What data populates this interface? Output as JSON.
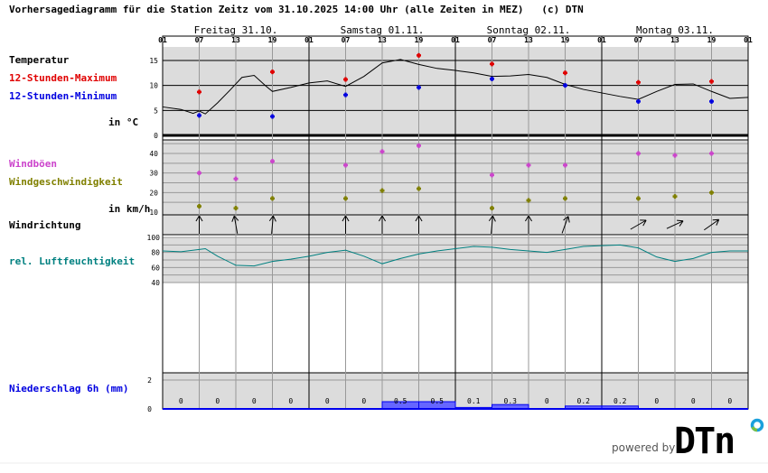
{
  "header": {
    "title": "Vorhersagediagramm für die Station Zeitz vom 31.10.2025 14:00 Uhr (alle Zeiten in MEZ)   (c) DTN"
  },
  "labels": {
    "temperature": "Temperatur",
    "max": "12-Stunden-Maximum",
    "min": "12-Stunden-Minimum",
    "temp_unit": "in °C",
    "gusts": "Windböen",
    "wind_speed": "Windgeschwindigkeit",
    "wind_unit": "in km/h",
    "wind_dir": "Windrichtung",
    "humidity": "rel. Luftfeuchtigkeit",
    "precip": "Niederschlag 6h (mm)"
  },
  "footer": {
    "powered_by": "powered by",
    "logo": "DTN"
  },
  "colors": {
    "max": "#e00000",
    "min": "#0000e0",
    "gust": "#cc44cc",
    "wind": "#808000",
    "humidity": "#008080",
    "precip_fill": "#6666ff",
    "precip_edge": "#0000ee",
    "panel": "#dcdcdc",
    "accent_logo": "#1aa0dc",
    "accent_logo2": "#7ac143"
  },
  "chart_data": {
    "type": "line",
    "days": [
      "Freitag 31.10.",
      "Samstag 01.11.",
      "Sonntag 02.11.",
      "Montag 03.11."
    ],
    "hour_ticks": [
      "01",
      "07",
      "13",
      "19",
      "01",
      "07",
      "13",
      "19",
      "01",
      "07",
      "13",
      "19",
      "01",
      "07",
      "13",
      "19",
      "01"
    ],
    "temperature": {
      "ylim": [
        0,
        17.7
      ],
      "ticks": [
        0,
        5,
        10,
        15
      ],
      "hours_3h_from_fri_01": [
        0,
        3,
        5,
        6,
        7,
        9,
        11,
        13,
        15,
        17,
        18,
        21,
        24,
        27,
        30,
        33,
        36,
        39,
        42,
        45,
        48,
        51,
        54,
        57,
        60,
        63,
        66,
        69,
        72,
        75,
        78,
        81,
        84,
        87,
        90,
        93,
        96
      ],
      "values": [
        5.7,
        5.2,
        4.4,
        4.9,
        4.3,
        6.5,
        9,
        11.6,
        12,
        9.8,
        8.8,
        9.6,
        10.5,
        10.9,
        9.8,
        11.8,
        14.5,
        15.2,
        14.2,
        13.4,
        13,
        12.5,
        11.8,
        11.9,
        12.2,
        11.6,
        10.2,
        9.2,
        8.5,
        7.8,
        7.2,
        8.8,
        10.2,
        10.3,
        8.8,
        7.4,
        7.6
      ],
      "max_12h": {
        "hours": [
          6,
          18,
          30,
          42,
          54,
          66,
          78,
          90
        ],
        "values": [
          8.7,
          12.7,
          11.2,
          16,
          14.3,
          12.5,
          10.6,
          10.8
        ]
      },
      "min_12h": {
        "hours": [
          6,
          18,
          30,
          42,
          54,
          66,
          78,
          90
        ],
        "values": [
          4,
          3.8,
          8.1,
          9.6,
          11.3,
          10,
          6.8,
          6.8
        ]
      }
    },
    "wind": {
      "ylim": [
        10,
        46
      ],
      "ticks": [
        10,
        20,
        30,
        40
      ],
      "hours": [
        6,
        12,
        18,
        30,
        36,
        42,
        54,
        60,
        66,
        78,
        84,
        90
      ],
      "gusts": [
        30,
        27,
        36,
        34,
        41,
        44,
        29,
        34,
        34,
        40,
        39,
        40
      ],
      "speed": [
        13,
        12,
        17,
        17,
        21,
        22,
        12,
        16,
        17,
        17,
        18,
        20
      ],
      "direction_deg": [
        180,
        170,
        185,
        180,
        180,
        180,
        185,
        180,
        200,
        240,
        245,
        235
      ]
    },
    "humidity": {
      "ylim": [
        40,
        100
      ],
      "ticks": [
        40,
        60,
        80,
        100
      ],
      "hours": [
        0,
        3,
        6,
        7,
        9,
        12,
        15,
        18,
        21,
        24,
        27,
        30,
        33,
        36,
        39,
        42,
        45,
        48,
        51,
        54,
        57,
        60,
        63,
        66,
        69,
        72,
        75,
        78,
        81,
        84,
        87,
        90,
        93,
        96
      ],
      "values": [
        82,
        81,
        84,
        85,
        75,
        63,
        62,
        68,
        71,
        75,
        80,
        83,
        75,
        65,
        72,
        78,
        82,
        85,
        88,
        87,
        84,
        82,
        80,
        84,
        88,
        89,
        90,
        86,
        74,
        68,
        72,
        80,
        82,
        82
      ]
    },
    "precipitation": {
      "ylim": [
        0,
        2
      ],
      "ticks": [
        0,
        2
      ],
      "bin_hours": 6,
      "values": [
        0,
        0,
        0,
        0,
        0,
        0,
        0.5,
        0.5,
        0.1,
        0.3,
        0,
        0.2,
        0.2,
        0,
        0,
        0
      ],
      "labels": [
        "0",
        "0",
        "0",
        "0",
        "0",
        "0",
        "0.5",
        "0.5",
        "0.1",
        "0.3",
        "0",
        "0.2",
        "0.2",
        "0",
        "0",
        "0"
      ]
    }
  }
}
